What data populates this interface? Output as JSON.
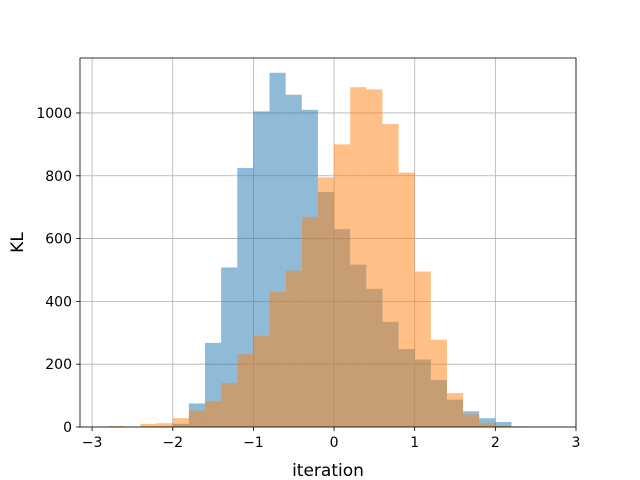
{
  "chart_data": {
    "type": "bar",
    "title": "",
    "xlabel": "iteration",
    "ylabel": "KL",
    "xlim": [
      -3.15,
      3.0
    ],
    "ylim": [
      0,
      1175
    ],
    "xticks": [
      -3,
      -2,
      -1,
      0,
      1,
      2,
      3
    ],
    "xtick_labels": [
      "−3",
      "−2",
      "−1",
      "0",
      "1",
      "2",
      "3"
    ],
    "yticks": [
      0,
      200,
      400,
      600,
      800,
      1000
    ],
    "ytick_labels": [
      "0",
      "200",
      "400",
      "600",
      "800",
      "1000"
    ],
    "grid": true,
    "series": [
      {
        "color": "#1f77b4",
        "opacity": 0.5,
        "bin_width": 0.2,
        "bin_starts": [
          -3.0,
          -2.8,
          -2.6,
          -2.4,
          -2.2,
          -2.0,
          -1.8,
          -1.6,
          -1.4,
          -1.2,
          -1.0,
          -0.8,
          -0.6,
          -0.4,
          -0.2,
          0.0,
          0.2,
          0.4,
          0.6,
          0.8,
          1.0,
          1.2,
          1.4,
          1.6,
          1.8,
          2.0,
          2.2
        ],
        "values": [
          0,
          0,
          0,
          0,
          2,
          10,
          75,
          268,
          508,
          825,
          1005,
          1128,
          1058,
          1010,
          748,
          630,
          517,
          440,
          335,
          248,
          215,
          150,
          87,
          50,
          28,
          16,
          2
        ]
      },
      {
        "color": "#ff7f0e",
        "opacity": 0.5,
        "bin_width": 0.2,
        "bin_starts": [
          -2.8,
          -2.6,
          -2.4,
          -2.2,
          -2.0,
          -1.8,
          -1.6,
          -1.4,
          -1.2,
          -1.0,
          -0.8,
          -0.6,
          -0.4,
          -0.2,
          0.0,
          0.2,
          0.4,
          0.6,
          0.8,
          1.0,
          1.2,
          1.4,
          1.6,
          1.8,
          2.0
        ],
        "values": [
          3,
          0,
          10,
          12,
          28,
          52,
          82,
          140,
          232,
          290,
          430,
          498,
          668,
          795,
          900,
          1082,
          1075,
          965,
          810,
          495,
          278,
          108,
          40,
          12,
          4
        ]
      }
    ]
  }
}
